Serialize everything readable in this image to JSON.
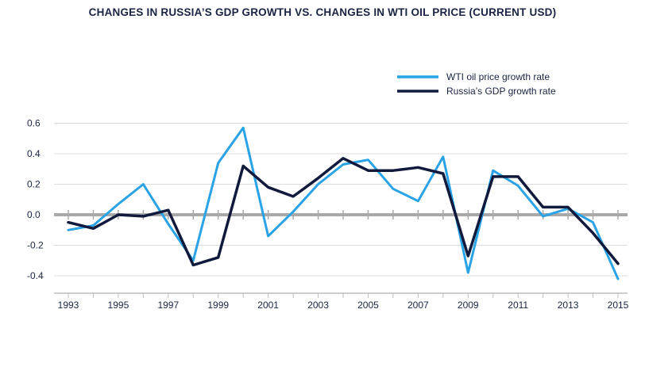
{
  "chart_data": {
    "type": "line",
    "title": "CHANGES IN RUSSIA’S GDP GROWTH VS. CHANGES IN WTI OIL PRICE (CURRENT USD)",
    "xlabel": "",
    "ylabel": "",
    "x": [
      1993,
      1994,
      1995,
      1996,
      1997,
      1998,
      1999,
      2000,
      2001,
      2002,
      2003,
      2004,
      2005,
      2006,
      2007,
      2008,
      2009,
      2010,
      2011,
      2012,
      2013,
      2014,
      2015
    ],
    "x_ticks": [
      "1993",
      "1995",
      "1997",
      "1999",
      "2001",
      "2003",
      "2005",
      "2007",
      "2009",
      "2011",
      "2013",
      "2015"
    ],
    "y_ticks": [
      "0.6",
      "0.4",
      "0.2",
      "0.0",
      "-0.2",
      "-0.4"
    ],
    "ylim": [
      -0.45,
      0.6
    ],
    "grid": true,
    "legend_position": "top-right",
    "series": [
      {
        "name": "WTI oil price growth rate",
        "color": "#29a3e6",
        "values": [
          -0.1,
          -0.07,
          0.07,
          0.2,
          -0.06,
          -0.3,
          0.34,
          0.57,
          -0.14,
          0.02,
          0.2,
          0.33,
          0.36,
          0.17,
          0.09,
          0.38,
          -0.38,
          0.29,
          0.19,
          -0.01,
          0.04,
          -0.05,
          -0.42
        ]
      },
      {
        "name": "Russia’s GDP growth rate",
        "color": "#111a3c",
        "values": [
          -0.05,
          -0.09,
          0.0,
          -0.01,
          0.03,
          -0.33,
          -0.28,
          0.32,
          0.18,
          0.12,
          0.24,
          0.37,
          0.29,
          0.29,
          0.31,
          0.27,
          -0.27,
          0.25,
          0.25,
          0.05,
          0.05,
          -0.12,
          -0.32
        ]
      }
    ]
  }
}
